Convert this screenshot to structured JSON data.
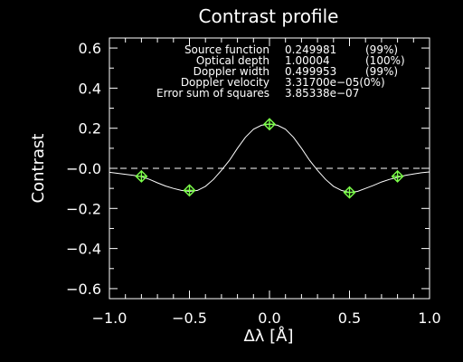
{
  "chart_data": {
    "type": "line",
    "title": "Contrast profile",
    "xlabel": "Δλ [Å]",
    "ylabel": "Contrast",
    "xlim": [
      -1.0,
      1.0
    ],
    "ylim": [
      -0.65,
      0.65
    ],
    "x_ticks": [
      "−1.0",
      "−0.5",
      "0.0",
      "0.5",
      "1.0"
    ],
    "x_tick_values": [
      -1.0,
      -0.5,
      0.0,
      0.5,
      1.0
    ],
    "y_ticks": [
      "0.6",
      "0.4",
      "0.2",
      "−0.0",
      "−0.2",
      "−0.4",
      "−0.6"
    ],
    "y_tick_values": [
      0.6,
      0.4,
      0.2,
      0.0,
      -0.2,
      -0.4,
      -0.6
    ],
    "reference_line": {
      "y": 0.0,
      "style": "dashed",
      "color": "#ffffff"
    },
    "fit_curve": {
      "color": "#ffffff",
      "x": [
        -1.0,
        -0.95,
        -0.9,
        -0.85,
        -0.8,
        -0.75,
        -0.7,
        -0.65,
        -0.6,
        -0.55,
        -0.5,
        -0.45,
        -0.4,
        -0.35,
        -0.3,
        -0.25,
        -0.2,
        -0.15,
        -0.1,
        -0.05,
        0.0,
        0.05,
        0.1,
        0.15,
        0.2,
        0.25,
        0.3,
        0.35,
        0.4,
        0.45,
        0.5,
        0.55,
        0.6,
        0.65,
        0.7,
        0.75,
        0.8,
        0.85,
        0.9,
        0.95,
        1.0
      ],
      "y": [
        -0.02,
        -0.025,
        -0.03,
        -0.035,
        -0.042,
        -0.055,
        -0.072,
        -0.088,
        -0.1,
        -0.11,
        -0.115,
        -0.11,
        -0.09,
        -0.055,
        -0.01,
        0.04,
        0.1,
        0.155,
        0.195,
        0.215,
        0.22,
        0.215,
        0.195,
        0.155,
        0.1,
        0.04,
        -0.01,
        -0.055,
        -0.09,
        -0.11,
        -0.12,
        -0.115,
        -0.1,
        -0.085,
        -0.068,
        -0.055,
        -0.045,
        -0.035,
        -0.028,
        -0.022,
        -0.018
      ]
    },
    "series": [
      {
        "name": "",
        "x": [
          -0.8,
          -0.5,
          0.0,
          0.5,
          0.8
        ],
        "y": [
          -0.04,
          -0.11,
          0.22,
          -0.12,
          -0.04
        ],
        "color": "#7cff4a",
        "marker": "diamond-plus"
      }
    ],
    "annotations": [
      {
        "label": "Source function",
        "value": "0.249981",
        "pct": "(99%)"
      },
      {
        "label": "Optical depth",
        "value": "1.00004",
        "pct": "(100%)"
      },
      {
        "label": "Doppler width",
        "value": "0.499953",
        "pct": "(99%)"
      },
      {
        "label": "Doppler velocity",
        "value": "3.31700e−05(0%)",
        "pct": ""
      },
      {
        "label": "Error sum of squares",
        "value": "3.85338e−07",
        "pct": ""
      }
    ],
    "colors": {
      "background": "#000000",
      "foreground": "#ffffff",
      "data_points": "#7cff4a"
    },
    "grid": false
  }
}
